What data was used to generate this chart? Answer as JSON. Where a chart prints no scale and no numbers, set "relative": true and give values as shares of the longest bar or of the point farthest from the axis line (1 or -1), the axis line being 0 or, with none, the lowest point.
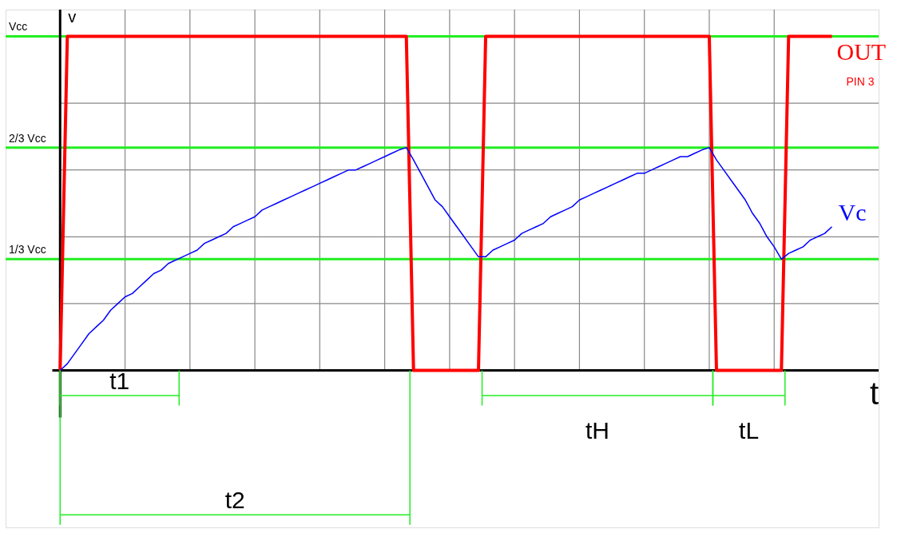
{
  "chart_data": {
    "type": "line",
    "xlabel": "t",
    "ylabel": "v",
    "legend": false,
    "grid": true,
    "marker": "none",
    "line_style": "solid",
    "categories": [
      null,
      null,
      null,
      null,
      null,
      null,
      null,
      null,
      null,
      null,
      null,
      null,
      null,
      null,
      null,
      null,
      null,
      null,
      null,
      null,
      null,
      null,
      null,
      null,
      null,
      null,
      null,
      null,
      null,
      null,
      null,
      null,
      null,
      null,
      null,
      null,
      null,
      null,
      null,
      null,
      null,
      null,
      null,
      null,
      null,
      null,
      null,
      null,
      null,
      null,
      null,
      null,
      null,
      null,
      null,
      null,
      null,
      null,
      null,
      null,
      null,
      null,
      null,
      null,
      null,
      null,
      null,
      null,
      null,
      null,
      null,
      null,
      null,
      null,
      null,
      null,
      null,
      null,
      null,
      null,
      null,
      null,
      null,
      null,
      null,
      null,
      null,
      null,
      null,
      null,
      null,
      null,
      null,
      null,
      null,
      null,
      null,
      null,
      null,
      null,
      null,
      null,
      null,
      null,
      null,
      null,
      null,
      null
    ],
    "series": [
      {
        "name": "OUT",
        "color": "#ff0000",
        "values": [
          0,
          1,
          1,
          1,
          1,
          1,
          1,
          1,
          1,
          1,
          1,
          1,
          1,
          1,
          1,
          1,
          1,
          1,
          1,
          1,
          1,
          1,
          1,
          1,
          1,
          1,
          1,
          1,
          1,
          1,
          1,
          1,
          1,
          1,
          1,
          1,
          1,
          1,
          1,
          1,
          1,
          1,
          1,
          1,
          1,
          1,
          1,
          1,
          1,
          0,
          0,
          0,
          0,
          0,
          0,
          0,
          0,
          0,
          0,
          1,
          1,
          1,
          1,
          1,
          1,
          1,
          1,
          1,
          1,
          1,
          1,
          1,
          1,
          1,
          1,
          1,
          1,
          1,
          1,
          1,
          1,
          1,
          1,
          1,
          1,
          1,
          1,
          1,
          1,
          1,
          1,
          0,
          0,
          0,
          0,
          0,
          0,
          0,
          0,
          0,
          0,
          1,
          1,
          1,
          1,
          1,
          1,
          1
        ]
      },
      {
        "name": "Vc",
        "color": "#0000ff",
        "values": [
          0,
          0.02,
          0.05,
          0.08,
          0.11,
          0.13,
          0.15,
          0.18,
          0.2,
          0.22,
          0.23,
          0.25,
          0.27,
          0.29,
          0.3,
          0.32,
          0.33,
          0.34,
          0.35,
          0.36,
          0.38,
          0.39,
          0.4,
          0.41,
          0.43,
          0.44,
          0.45,
          0.46,
          0.48,
          0.49,
          0.5,
          0.51,
          0.52,
          0.53,
          0.54,
          0.55,
          0.56,
          0.57,
          0.58,
          0.59,
          0.6,
          0.6,
          0.61,
          0.62,
          0.63,
          0.64,
          0.65,
          0.66,
          0.667,
          0.63,
          0.59,
          0.55,
          0.51,
          0.49,
          0.46,
          0.43,
          0.4,
          0.37,
          0.34,
          0.34,
          0.36,
          0.37,
          0.38,
          0.39,
          0.41,
          0.42,
          0.43,
          0.44,
          0.46,
          0.47,
          0.48,
          0.49,
          0.51,
          0.52,
          0.53,
          0.54,
          0.55,
          0.56,
          0.57,
          0.58,
          0.59,
          0.59,
          0.6,
          0.61,
          0.62,
          0.63,
          0.64,
          0.64,
          0.65,
          0.66,
          0.667,
          0.63,
          0.6,
          0.57,
          0.54,
          0.51,
          0.47,
          0.44,
          0.4,
          0.37,
          0.333,
          0.35,
          0.36,
          0.37,
          0.39,
          0.4,
          0.41,
          0.43
        ]
      }
    ],
    "relative": true,
    "ref_lines": [
      {
        "axis": "y",
        "value": 1,
        "label": "Vcc",
        "color": "#22ee22"
      },
      {
        "axis": "y",
        "value": 0.667,
        "label": "2/3 Vcc",
        "color": "#22ee22"
      },
      {
        "axis": "y",
        "value": 0.333,
        "label": "1/3 Vcc",
        "color": "#22ee22"
      }
    ],
    "annotations": [
      "PIN 3",
      "t1",
      "t2",
      "tH",
      "tL"
    ]
  }
}
